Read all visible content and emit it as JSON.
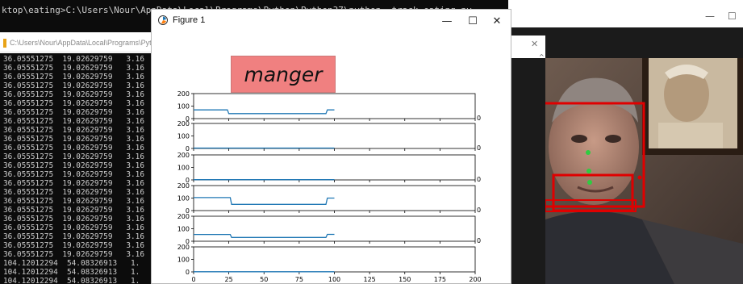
{
  "console_top": {
    "path_text": "ktop\\eating>C:\\Users\\Nour\\AppData\\Local\\Programs\\Python\\Python37\\python  track_eating.py"
  },
  "console": {
    "title": "C:\\Users\\Nour\\AppData\\Local\\Programs\\Pyth",
    "rows": [
      "36.05551275  19.02629759   3.16",
      "36.05551275  19.02629759   3.16",
      "36.05551275  19.02629759   3.16",
      "36.05551275  19.02629759   3.16",
      "36.05551275  19.02629759   3.16",
      "36.05551275  19.02629759   3.16",
      "36.05551275  19.02629759   3.16",
      "36.05551275  19.02629759   3.16",
      "36.05551275  19.02629759   3.16",
      "36.05551275  19.02629759   3.16",
      "36.05551275  19.02629759   3.16",
      "36.05551275  19.02629759   3.16",
      "36.05551275  19.02629759   3.16",
      "36.05551275  19.02629759   3.16",
      "36.05551275  19.02629759   3.16",
      "36.05551275  19.02629759   3.16",
      "36.05551275  19.02629759   3.16",
      "36.05551275  19.02629759   3.16",
      "36.05551275  19.02629759   3.16",
      "36.05551275  19.02629759   3.16",
      "36.05551275  19.02629759   3.16",
      "36.05551275  19.02629759   3.16",
      "36.05551275  19.02629759   3.16",
      "104.12012294  54.08326913   1.",
      "104.12012294  54.08326913   1.",
      "104.12012294  54.08326913   1."
    ]
  },
  "figure": {
    "title": "Figure 1",
    "label": "manger",
    "label_color": "#f08080",
    "line_color": "#1f77b4",
    "minimize": "—",
    "maximize": "☐",
    "close": "✕"
  },
  "right_window": {
    "minimize": "—",
    "maximize": "☐"
  },
  "video": {
    "box_color": "#e00000",
    "landmark_color": "#2ecc40"
  },
  "chart_data": {
    "type": "line",
    "subplots": [
      {
        "yticks": [
          0,
          100,
          200
        ],
        "xlim": [
          0,
          100
        ],
        "ylim": [
          0,
          200
        ],
        "x": [
          0,
          24,
          25,
          94,
          95,
          100
        ],
        "y": [
          70,
          70,
          40,
          40,
          70,
          70
        ]
      },
      {
        "yticks": [
          0,
          100,
          200
        ],
        "xlim": [
          0,
          100
        ],
        "ylim": [
          0,
          200
        ],
        "x": [
          0,
          100
        ],
        "y": [
          3,
          3
        ]
      },
      {
        "yticks": [
          0,
          100,
          200
        ],
        "xlim": [
          0,
          100
        ],
        "ylim": [
          0,
          200
        ],
        "x": [
          0,
          100
        ],
        "y": [
          2,
          2
        ]
      },
      {
        "yticks": [
          0,
          100,
          200
        ],
        "xlim": [
          0,
          100
        ],
        "ylim": [
          0,
          200
        ],
        "x": [
          0,
          26,
          27,
          94,
          95,
          100
        ],
        "y": [
          104,
          104,
          50,
          50,
          100,
          100
        ]
      },
      {
        "yticks": [
          0,
          100,
          200
        ],
        "xlim": [
          0,
          100
        ],
        "ylim": [
          0,
          200
        ],
        "x": [
          0,
          26,
          27,
          94,
          95,
          100
        ],
        "y": [
          54,
          54,
          30,
          30,
          55,
          55
        ]
      },
      {
        "yticks": [
          0,
          100,
          200
        ],
        "xlim": [
          0,
          100
        ],
        "ylim": [
          0,
          200
        ],
        "x": [
          0,
          100
        ],
        "y": [
          1,
          1
        ]
      }
    ],
    "bottom_xticks": [
      0,
      25,
      50,
      75,
      100,
      125,
      150,
      175,
      200
    ],
    "bottom_xlim": [
      0,
      200
    ],
    "right_tick_label": "0"
  }
}
